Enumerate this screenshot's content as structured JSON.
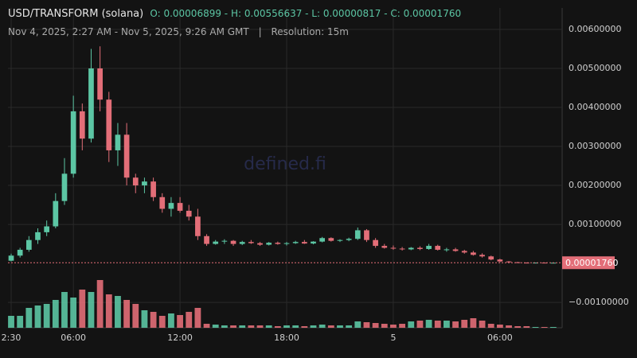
{
  "chart_data": {
    "type": "candlestick",
    "title": "USD/TRANSFORM (solana)",
    "ohlc_text": "O: 0.00006899 - H: 0.00556637 - L: 0.00000817 - C: 0.00001760",
    "subtitle": "Nov 4, 2025, 2:27 AM - Nov 5, 2025, 9:26 AM GMT",
    "separator": "|",
    "resolution": "Resolution: 15m",
    "watermark": "defined.fi",
    "grid": true,
    "up_color": "#5cc6a4",
    "down_color": "#e36e78",
    "x": [
      2.5,
      3,
      3.5,
      4,
      4.5,
      5,
      5.5,
      6,
      6.5,
      7,
      7.5,
      8,
      8.5,
      9,
      9.5,
      10,
      10.5,
      11,
      11.5,
      12,
      12.5,
      13,
      13.5,
      14,
      14.5,
      15,
      15.5,
      16,
      16.5,
      17,
      17.5,
      18,
      18.5,
      19,
      19.5,
      20,
      20.5,
      21,
      21.5,
      22,
      22.5,
      23,
      23.5,
      24,
      24.5,
      25,
      25.5,
      26,
      26.5,
      27,
      27.5,
      28,
      28.5,
      29,
      29.5,
      30,
      30.5,
      31,
      31.5,
      32,
      32.5,
      33
    ],
    "series": [
      {
        "open": [
          6.899e-05,
          0.0002,
          0.00035,
          0.0006,
          0.0008,
          0.00095,
          0.0016,
          0.0023,
          0.0039,
          0.0032,
          0.005,
          0.0042,
          0.0029,
          0.0033,
          0.0022,
          0.002,
          0.0021,
          0.0017,
          0.0014,
          0.00155,
          0.00135,
          0.0012,
          0.0007,
          0.0005,
          0.00056,
          0.00058,
          0.0005,
          0.00055,
          0.00052,
          0.00048,
          0.00053,
          0.0005,
          0.00052,
          0.00055,
          0.00051,
          0.00056,
          0.00065,
          0.00058,
          0.0006,
          0.00063,
          0.00085,
          0.0006,
          0.00045,
          0.0004,
          0.00038,
          0.00036,
          0.0004,
          0.00037,
          0.00045,
          0.00035,
          0.00036,
          0.00032,
          0.00028,
          0.00022,
          0.00018,
          0.0001,
          5e-05,
          3e-05,
          2e-05,
          1.8e-05,
          2e-05,
          1.7e-05
        ],
        "high": [
          0.00025,
          0.0004,
          0.0007,
          0.0009,
          0.0011,
          0.0018,
          0.0027,
          0.0043,
          0.0041,
          0.0055,
          0.00556637,
          0.0044,
          0.0036,
          0.0036,
          0.0023,
          0.0022,
          0.0022,
          0.0018,
          0.0017,
          0.0017,
          0.0015,
          0.0014,
          0.00075,
          0.0006,
          0.00062,
          0.0006,
          0.00058,
          0.0006,
          0.00055,
          0.00055,
          0.00056,
          0.00055,
          0.00058,
          0.0006,
          0.00057,
          0.00068,
          0.00067,
          0.00062,
          0.00066,
          0.00092,
          0.00088,
          0.00065,
          0.0005,
          0.00046,
          0.00042,
          0.00042,
          0.00044,
          0.0005,
          0.00048,
          0.0004,
          0.0004,
          0.00035,
          0.00032,
          0.00026,
          0.0002,
          0.00012,
          6e-05,
          4e-05,
          2.5e-05,
          2.2e-05,
          2.1e-05,
          2e-05
        ],
        "low": [
          5e-05,
          0.00015,
          0.0003,
          0.0005,
          0.0007,
          0.0009,
          0.0015,
          0.0022,
          0.0029,
          0.0031,
          0.0039,
          0.0026,
          0.0025,
          0.002,
          0.0018,
          0.0018,
          0.0016,
          0.0013,
          0.0012,
          0.0013,
          0.0011,
          0.0006,
          0.00045,
          0.00048,
          0.0005,
          0.00045,
          0.00047,
          0.0005,
          0.00045,
          0.00046,
          0.00048,
          0.00046,
          0.0005,
          0.0005,
          0.00049,
          0.00054,
          0.00056,
          0.00055,
          0.00057,
          0.0006,
          0.00055,
          0.0004,
          0.00038,
          0.00035,
          0.00033,
          0.00034,
          0.00034,
          0.00035,
          0.00033,
          0.0003,
          0.0003,
          0.00025,
          0.0002,
          0.00015,
          8e-05,
          3e-05,
          2e-05,
          1.5e-05,
          8.17e-06,
          1.2e-05,
          1.5e-05,
          1.5e-05
        ],
        "close": [
          0.0002,
          0.00035,
          0.0006,
          0.0008,
          0.00095,
          0.0016,
          0.0023,
          0.0039,
          0.0032,
          0.005,
          0.0042,
          0.0029,
          0.0033,
          0.0022,
          0.002,
          0.0021,
          0.0017,
          0.0014,
          0.00155,
          0.00135,
          0.0012,
          0.0007,
          0.0005,
          0.00056,
          0.00058,
          0.0005,
          0.00055,
          0.00052,
          0.00048,
          0.00053,
          0.0005,
          0.00052,
          0.00055,
          0.00051,
          0.00056,
          0.00065,
          0.00058,
          0.0006,
          0.00063,
          0.00085,
          0.0006,
          0.00045,
          0.0004,
          0.00038,
          0.00036,
          0.0004,
          0.00037,
          0.00045,
          0.00035,
          0.00036,
          0.00032,
          0.00028,
          0.00022,
          0.00018,
          0.0001,
          5e-05,
          3e-05,
          2e-05,
          1.8e-05,
          2e-05,
          1.7e-05,
          1.76e-05
        ],
        "volume": [
          15,
          15,
          25,
          28,
          30,
          35,
          45,
          38,
          48,
          45,
          60,
          42,
          40,
          35,
          30,
          22,
          20,
          15,
          18,
          16,
          20,
          25,
          5,
          4,
          3,
          3,
          3,
          3,
          3,
          3,
          2,
          3,
          3,
          2,
          3,
          4,
          3,
          3,
          3,
          8,
          7,
          6,
          5,
          4,
          5,
          8,
          9,
          10,
          9,
          9,
          8,
          10,
          12,
          9,
          5,
          4,
          3,
          2,
          2,
          1,
          1,
          1
        ]
      }
    ],
    "last_price": {
      "value": 1.76e-05,
      "label": "0.00001760"
    },
    "xlim": [
      2.32,
      33.5
    ],
    "xticks": [
      {
        "value": 2.5,
        "label": "2:30"
      },
      {
        "value": 6,
        "label": "06:00"
      },
      {
        "value": 12,
        "label": "12:00"
      },
      {
        "value": 18,
        "label": "18:00"
      },
      {
        "value": 24,
        "label": "5"
      },
      {
        "value": 30,
        "label": "06:00"
      }
    ],
    "ylim": [
      -0.00165,
      0.00655
    ],
    "yticks": [
      {
        "value": 0.006,
        "label": "0.00600000"
      },
      {
        "value": 0.005,
        "label": "0.00500000"
      },
      {
        "value": 0.004,
        "label": "0.00400000"
      },
      {
        "value": 0.003,
        "label": "0.00300000"
      },
      {
        "value": 0.002,
        "label": "0.00200000"
      },
      {
        "value": 0.001,
        "label": "0.00100000"
      },
      {
        "value": -0.001,
        "label": "−0.00100000"
      }
    ]
  }
}
